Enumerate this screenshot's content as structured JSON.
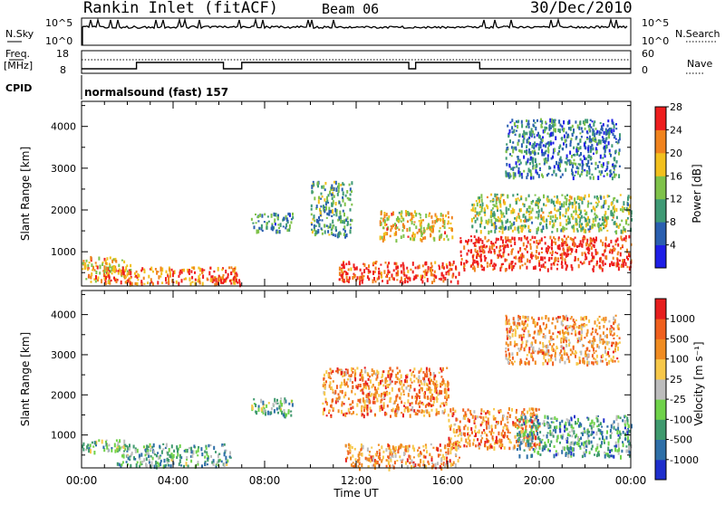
{
  "header": {
    "station": "Rankin Inlet (fitACF)",
    "beam": "Beam 06",
    "date": "30/Dec/2010"
  },
  "panels": {
    "sky": {
      "left_label": "N.Sky",
      "left_ticks": [
        "10^5",
        "10^0"
      ],
      "right_ticks": [
        "10^5",
        "10^0"
      ],
      "right_label": "N.Search"
    },
    "freq": {
      "left_label_1": "Freq.",
      "left_label_2": "[MHz]",
      "left_ticks": [
        "18",
        "8"
      ],
      "right_ticks": [
        "60",
        "0"
      ],
      "right_label": "Nave"
    },
    "cpid": {
      "label": "CPID",
      "program": "normalsound (fast) 157"
    }
  },
  "time_axis": {
    "label": "Time UT",
    "ticks": [
      "00:00",
      "04:00",
      "08:00",
      "12:00",
      "16:00",
      "20:00",
      "00:00"
    ]
  },
  "colors": {
    "power_scale": [
      "#1e1ee6",
      "#2a5fb0",
      "#3f9a75",
      "#7fc24a",
      "#f2c01e",
      "#f0831e",
      "#ee1e1e"
    ],
    "velocity_scale": [
      "#1e2ecc",
      "#2e6fa8",
      "#3f9a6e",
      "#6fd24a",
      "#bdbdbd",
      "#f7c84a",
      "#f08c22",
      "#f0601e",
      "#e61e1e"
    ]
  },
  "chart_data": [
    {
      "type": "heatmap",
      "title": "",
      "xlabel": "Time UT",
      "ylabel": "Slant Range [km]",
      "xlim_hours": [
        0,
        24
      ],
      "ylim_km": [
        180,
        4600
      ],
      "yticks": [
        "1000",
        "2000",
        "3000",
        "4000"
      ],
      "colorbar": {
        "label": "Power [dB]",
        "ticks": [
          "4",
          "8",
          "12",
          "16",
          "20",
          "24",
          "28"
        ]
      },
      "regions": [
        {
          "name": "",
          "t": [
            0.0,
            2.2
          ],
          "r": [
            300,
            900
          ],
          "level": 0.7
        },
        {
          "name": "",
          "t": [
            1.0,
            6.8
          ],
          "r": [
            250,
            650
          ],
          "level": 0.8
        },
        {
          "name": "",
          "t": [
            5.6,
            6.9
          ],
          "r": [
            220,
            450
          ],
          "level": 0.95
        },
        {
          "name": "",
          "t": [
            7.4,
            9.2
          ],
          "r": [
            1500,
            1950
          ],
          "level": 0.35
        },
        {
          "name": "",
          "t": [
            10.0,
            11.8
          ],
          "r": [
            1400,
            2700
          ],
          "level": 0.4
        },
        {
          "name": "",
          "t": [
            11.2,
            16.5
          ],
          "r": [
            300,
            800
          ],
          "level": 0.9
        },
        {
          "name": "",
          "t": [
            13.0,
            16.2
          ],
          "r": [
            1300,
            2000
          ],
          "level": 0.65
        },
        {
          "name": "",
          "t": [
            16.5,
            24.0
          ],
          "r": [
            600,
            1400
          ],
          "level": 0.95
        },
        {
          "name": "",
          "t": [
            17.0,
            24.0
          ],
          "r": [
            1500,
            2400
          ],
          "level": 0.5
        },
        {
          "name": "",
          "t": [
            18.5,
            23.5
          ],
          "r": [
            2800,
            4200
          ],
          "level": 0.3
        }
      ]
    },
    {
      "type": "heatmap",
      "title": "",
      "xlabel": "Time UT",
      "ylabel": "Slant Range [km]",
      "xlim_hours": [
        0,
        24
      ],
      "ylim_km": [
        180,
        4600
      ],
      "yticks": [
        "1000",
        "2000",
        "3000",
        "4000"
      ],
      "colorbar": {
        "label": "Velocity [m s⁻¹]",
        "ticks": [
          "1000",
          "500",
          "100",
          "25",
          "-25",
          "-100",
          "-500",
          "-1000"
        ]
      },
      "regions": [
        {
          "name": "",
          "t": [
            0.0,
            2.0
          ],
          "r": [
            600,
            900
          ],
          "level": 0.4
        },
        {
          "name": "",
          "t": [
            1.5,
            6.5
          ],
          "r": [
            250,
            800
          ],
          "level": 0.35
        },
        {
          "name": "",
          "t": [
            7.4,
            9.2
          ],
          "r": [
            1500,
            1950
          ],
          "level": 0.4
        },
        {
          "name": "",
          "t": [
            10.5,
            16.0
          ],
          "r": [
            1500,
            2700
          ],
          "level": 0.75
        },
        {
          "name": "",
          "t": [
            11.5,
            16.5
          ],
          "r": [
            200,
            800
          ],
          "level": 0.7
        },
        {
          "name": "",
          "t": [
            16.0,
            20.0
          ],
          "r": [
            700,
            1700
          ],
          "level": 0.75
        },
        {
          "name": "",
          "t": [
            19.0,
            24.0
          ],
          "r": [
            500,
            1500
          ],
          "level": 0.3
        },
        {
          "name": "",
          "t": [
            18.5,
            23.5
          ],
          "r": [
            2800,
            4000
          ],
          "level": 0.7
        }
      ]
    }
  ]
}
